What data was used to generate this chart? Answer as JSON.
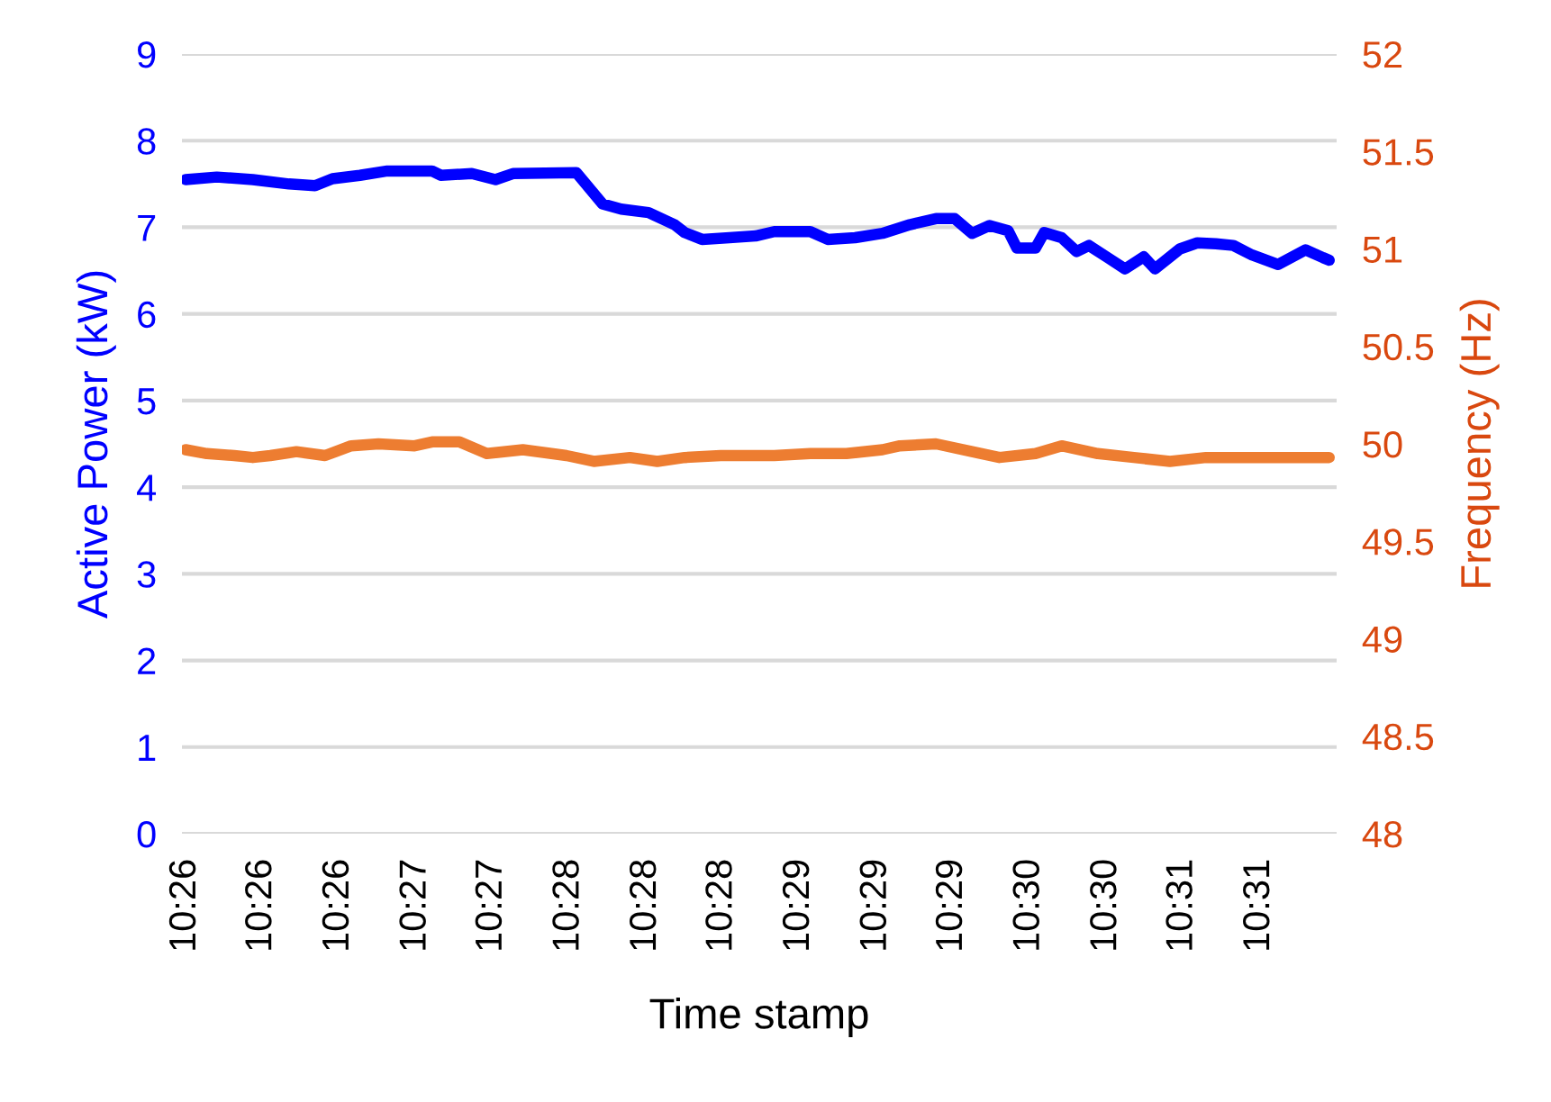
{
  "chart_data": {
    "type": "line",
    "xlabel": "Time stamp",
    "ylabel": "Active Power (kW)",
    "y2label": "Frequency (Hz)",
    "xlim": [
      10.4284,
      10.5212
    ],
    "xticks": [
      {
        "value": 10.4287,
        "label": "10:26"
      },
      {
        "value": 10.4348,
        "label": "10:26"
      },
      {
        "value": 10.441,
        "label": "10:26"
      },
      {
        "value": 10.4472,
        "label": "10:27"
      },
      {
        "value": 10.4533,
        "label": "10:27"
      },
      {
        "value": 10.4595,
        "label": "10:28"
      },
      {
        "value": 10.4657,
        "label": "10:28"
      },
      {
        "value": 10.4718,
        "label": "10:28"
      },
      {
        "value": 10.478,
        "label": "10:29"
      },
      {
        "value": 10.4842,
        "label": "10:29"
      },
      {
        "value": 10.4903,
        "label": "10:29"
      },
      {
        "value": 10.4965,
        "label": "10:30"
      },
      {
        "value": 10.5027,
        "label": "10:30"
      },
      {
        "value": 10.5088,
        "label": "10:31"
      },
      {
        "value": 10.515,
        "label": "10:31"
      }
    ],
    "ylim": [
      0,
      9
    ],
    "yticks": [
      0,
      1,
      2,
      3,
      4,
      5,
      6,
      7,
      8,
      9
    ],
    "y2lim": [
      48,
      52
    ],
    "y2ticks": [
      48,
      {
        "value": 48.5,
        "label": "48.5"
      },
      49,
      {
        "value": 49.5,
        "label": "49.5"
      },
      50,
      {
        "value": 50.5,
        "label": "50.5"
      },
      51,
      {
        "value": 51.5,
        "label": "51.5"
      },
      52
    ],
    "grid": "y",
    "marker": "none",
    "line_style": "solid",
    "series": [
      {
        "color": "#0000ff",
        "x": [
          10.4287,
          10.4312,
          10.4341,
          10.437,
          10.4391,
          10.4405,
          10.4427,
          10.4449,
          10.4485,
          10.4492,
          10.4517,
          10.4536,
          10.455,
          10.4601,
          10.4622,
          10.4637,
          10.4659,
          10.468,
          10.4688,
          10.4702,
          10.4724,
          10.4745,
          10.476,
          10.4789,
          10.4803,
          10.4825,
          10.4847,
          10.4869,
          10.489,
          10.4905,
          10.4919,
          10.4933,
          10.4948,
          10.4955,
          10.497,
          10.4977,
          10.4991,
          10.5003,
          10.5013,
          10.5028,
          10.5042,
          10.5057,
          10.5066,
          10.5086,
          10.51,
          10.5115,
          10.5129,
          10.5144,
          10.5165,
          10.5187,
          10.5201,
          10.5206
        ],
        "values": [
          7.55,
          7.58,
          7.55,
          7.5,
          7.48,
          7.56,
          7.6,
          7.65,
          7.65,
          7.6,
          7.62,
          7.55,
          7.62,
          7.63,
          7.27,
          7.21,
          7.17,
          7.03,
          6.94,
          6.86,
          6.88,
          6.9,
          6.95,
          6.95,
          6.86,
          6.88,
          6.93,
          7.03,
          7.1,
          7.1,
          6.93,
          7.02,
          6.96,
          6.76,
          6.76,
          6.94,
          6.88,
          6.72,
          6.79,
          6.65,
          6.52,
          6.66,
          6.52,
          6.75,
          6.82,
          6.81,
          6.79,
          6.68,
          6.57,
          6.74,
          6.65,
          6.62
        ]
      },
      {
        "color": "#ed7d31",
        "axis": "y2",
        "x": [
          10.4287,
          10.4304,
          10.4326,
          10.4341,
          10.4355,
          10.4376,
          10.4399,
          10.442,
          10.4442,
          10.4471,
          10.4485,
          10.4507,
          10.4529,
          10.4558,
          10.4593,
          10.4615,
          10.4644,
          10.4666,
          10.4688,
          10.4717,
          10.476,
          10.4789,
          10.4818,
          10.4847,
          10.4861,
          10.489,
          10.4919,
          10.4941,
          10.497,
          10.4991,
          10.502,
          10.5049,
          10.5078,
          10.5107,
          10.515,
          10.5206
        ],
        "values": [
          49.97,
          49.95,
          49.94,
          49.93,
          49.94,
          49.96,
          49.94,
          49.99,
          50.0,
          49.99,
          50.01,
          50.01,
          49.95,
          49.97,
          49.94,
          49.91,
          49.93,
          49.91,
          49.93,
          49.94,
          49.94,
          49.95,
          49.95,
          49.97,
          49.99,
          50.0,
          49.96,
          49.93,
          49.95,
          49.99,
          49.95,
          49.93,
          49.91,
          49.93,
          49.93,
          49.93
        ]
      }
    ]
  }
}
